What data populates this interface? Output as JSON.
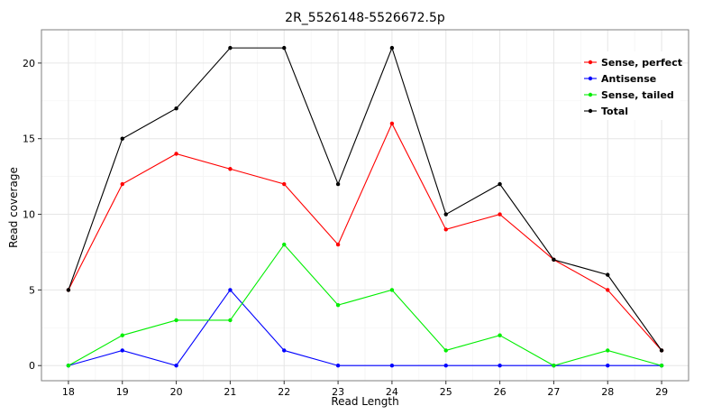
{
  "chart_data": {
    "type": "line",
    "title": "2R_5526148-5526672.5p",
    "xlabel": "Read Length",
    "ylabel": "Read coverage",
    "x": [
      18,
      19,
      20,
      21,
      22,
      23,
      24,
      25,
      26,
      27,
      28,
      29
    ],
    "xlim": [
      17.5,
      29.5
    ],
    "ylim": [
      -1,
      22.2
    ],
    "y_ticks": [
      0,
      5,
      10,
      15,
      20
    ],
    "grid": true,
    "legend_position": "top-right",
    "series": [
      {
        "name": "Sense, perfect",
        "color": "#ff0000",
        "values": [
          5,
          12,
          14,
          13,
          12,
          8,
          16,
          9,
          10,
          7,
          5,
          1
        ]
      },
      {
        "name": "Antisense",
        "color": "#0000ff",
        "values": [
          0,
          1,
          0,
          5,
          1,
          0,
          0,
          0,
          0,
          0,
          0,
          0
        ]
      },
      {
        "name": "Sense, tailed",
        "color": "#00ee00",
        "values": [
          0,
          2,
          3,
          3,
          8,
          4,
          5,
          1,
          2,
          0,
          1,
          0
        ]
      },
      {
        "name": "Total",
        "color": "#000000",
        "values": [
          5,
          15,
          17,
          21,
          21,
          12,
          21,
          10,
          12,
          7,
          6,
          1
        ]
      }
    ]
  }
}
